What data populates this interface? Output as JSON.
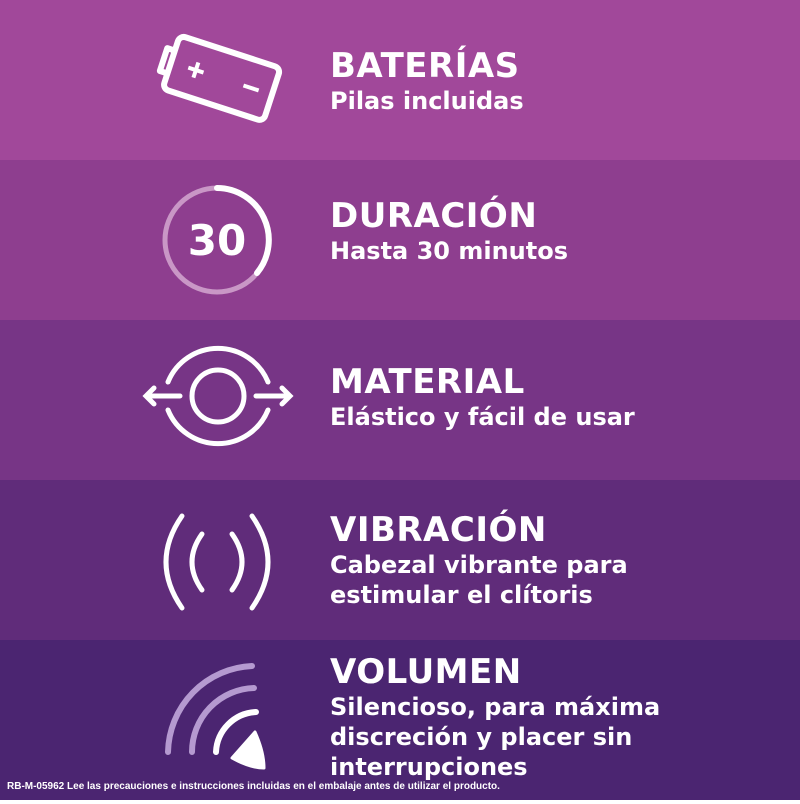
{
  "colors": {
    "band1": "#a1489a",
    "band2": "#8e3e8f",
    "band3": "#773586",
    "band4": "#602c7a",
    "band5": "#4b2571"
  },
  "features": [
    {
      "icon": "battery-icon",
      "title": "BATERÍAS",
      "lines": [
        "Pilas incluidas"
      ]
    },
    {
      "icon": "timer-30-icon",
      "icon_text": "30",
      "title": "DURACIÓN",
      "lines": [
        "Hasta 30 minutos"
      ]
    },
    {
      "icon": "stretch-ring-icon",
      "title": "MATERIAL",
      "lines": [
        "Elástico y fácil de usar"
      ]
    },
    {
      "icon": "vibration-icon",
      "title": "VIBRACIÓN",
      "lines": [
        "Cabezal vibrante para",
        "estimular el clítoris"
      ]
    },
    {
      "icon": "speaker-volume-icon",
      "title": "VOLUMEN",
      "lines": [
        "Silencioso, para máxima",
        "discreción y placer sin",
        "interrupciones"
      ]
    }
  ],
  "footer": "RB-M-05962  Lee las precauciones e instrucciones incluidas en el embalaje antes de utilizar el producto."
}
